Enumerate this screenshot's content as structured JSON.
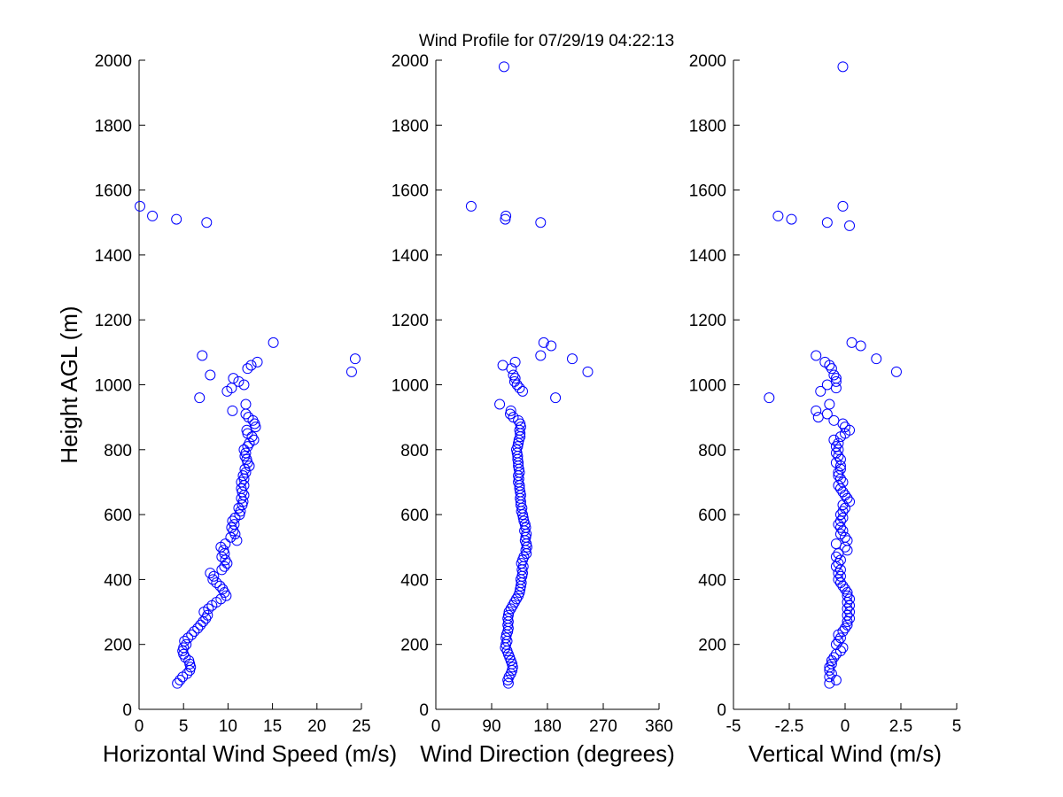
{
  "title": "Wind Profile for  07/29/19 04:22:13",
  "ylabel": "Height AGL (m)",
  "colors": {
    "marker": "#0000ff",
    "axis": "#000000",
    "background": "#ffffff"
  },
  "chart_data": [
    {
      "type": "scatter",
      "xlabel": "Horizontal Wind Speed (m/s)",
      "ylabel": "Height AGL (m)",
      "xlim": [
        0,
        25
      ],
      "ylim": [
        0,
        2000
      ],
      "xticks": [
        "0",
        "5",
        "10",
        "15",
        "20",
        "25"
      ],
      "yticks": [
        "0",
        "200",
        "400",
        "600",
        "800",
        "1000",
        "1200",
        "1400",
        "1600",
        "1800",
        "2000"
      ],
      "grid": false,
      "marker": "circle",
      "y": [
        80,
        90,
        100,
        110,
        120,
        130,
        140,
        150,
        160,
        170,
        180,
        190,
        200,
        210,
        220,
        230,
        240,
        250,
        260,
        270,
        280,
        290,
        300,
        310,
        320,
        330,
        340,
        350,
        360,
        370,
        380,
        390,
        400,
        410,
        420,
        430,
        440,
        450,
        460,
        470,
        480,
        490,
        500,
        510,
        520,
        530,
        540,
        550,
        560,
        570,
        580,
        590,
        600,
        610,
        620,
        630,
        640,
        650,
        660,
        670,
        680,
        690,
        700,
        710,
        720,
        730,
        740,
        750,
        760,
        770,
        780,
        790,
        800,
        810,
        820,
        830,
        840,
        850,
        860,
        870,
        880,
        890,
        900,
        910,
        920,
        940,
        960,
        980,
        990,
        1000,
        1010,
        1020,
        1030,
        1040,
        1050,
        1060,
        1070,
        1080,
        1090,
        1130,
        1500,
        1510,
        1520,
        1550
      ],
      "x": [
        4.3,
        4.6,
        4.9,
        5.4,
        5.7,
        5.8,
        5.7,
        5.6,
        5.2,
        5.0,
        4.9,
        5.0,
        5.3,
        5.1,
        5.5,
        5.9,
        6.2,
        6.6,
        6.9,
        7.2,
        7.5,
        7.7,
        7.3,
        7.8,
        8.2,
        8.7,
        9.2,
        9.8,
        9.6,
        9.4,
        9.1,
        8.7,
        8.3,
        8.4,
        8.0,
        9.3,
        9.6,
        9.9,
        9.7,
        9.3,
        9.6,
        9.5,
        9.2,
        9.7,
        11.0,
        10.3,
        10.8,
        10.6,
        10.4,
        10.7,
        10.5,
        10.8,
        11.3,
        11.4,
        11.2,
        11.6,
        11.7,
        11.5,
        11.8,
        11.6,
        11.5,
        11.8,
        11.5,
        11.8,
        11.7,
        12.0,
        11.9,
        12.4,
        12.2,
        12.1,
        11.9,
        12.0,
        11.8,
        12.2,
        12.4,
        12.9,
        12.7,
        12.2,
        12.1,
        13.1,
        13.0,
        12.8,
        12.3,
        12.0,
        10.5,
        12.0,
        6.8,
        9.9,
        10.4,
        11.8,
        11.2,
        10.6,
        8.0,
        23.9,
        12.2,
        12.6,
        13.3,
        24.3,
        7.1,
        15.1,
        7.6,
        4.2,
        1.5,
        0.1
      ]
    },
    {
      "type": "scatter",
      "xlabel": "Wind Direction (degrees)",
      "ylabel": "",
      "xlim": [
        0,
        360
      ],
      "ylim": [
        0,
        2000
      ],
      "xticks": [
        "0",
        "90",
        "180",
        "270",
        "360"
      ],
      "yticks": [
        "0",
        "200",
        "400",
        "600",
        "800",
        "1000",
        "1200",
        "1400",
        "1600",
        "1800",
        "2000"
      ],
      "grid": false,
      "marker": "circle",
      "y": [
        80,
        90,
        100,
        110,
        120,
        130,
        140,
        150,
        160,
        170,
        180,
        190,
        200,
        210,
        220,
        230,
        240,
        250,
        260,
        270,
        280,
        290,
        300,
        310,
        320,
        330,
        340,
        350,
        360,
        370,
        380,
        390,
        400,
        410,
        420,
        430,
        440,
        450,
        460,
        470,
        480,
        490,
        500,
        510,
        520,
        530,
        540,
        550,
        560,
        570,
        580,
        590,
        600,
        610,
        620,
        630,
        640,
        650,
        660,
        670,
        680,
        690,
        700,
        710,
        720,
        730,
        740,
        750,
        760,
        770,
        780,
        790,
        800,
        810,
        820,
        830,
        840,
        850,
        860,
        870,
        880,
        890,
        900,
        910,
        920,
        940,
        960,
        980,
        990,
        1000,
        1010,
        1020,
        1030,
        1040,
        1050,
        1060,
        1070,
        1080,
        1090,
        1120,
        1130,
        1500,
        1510,
        1520,
        1550,
        1980
      ],
      "x": [
        117,
        116,
        118,
        121,
        123,
        124,
        123,
        121,
        119,
        117,
        115,
        112,
        113,
        115,
        113,
        114,
        116,
        117,
        116,
        117,
        116,
        117,
        118,
        121,
        124,
        127,
        130,
        133,
        135,
        136,
        137,
        138,
        137,
        139,
        140,
        139,
        141,
        138,
        140,
        142,
        146,
        145,
        147,
        146,
        144,
        145,
        146,
        143,
        145,
        144,
        142,
        141,
        140,
        138,
        139,
        137,
        137,
        136,
        137,
        136,
        135,
        135,
        133,
        134,
        133,
        135,
        134,
        133,
        133,
        132,
        132,
        131,
        130,
        132,
        133,
        134,
        136,
        136,
        135,
        137,
        136,
        133,
        125,
        120,
        121,
        103,
        193,
        140,
        135,
        131,
        127,
        128,
        125,
        245,
        122,
        108,
        128,
        220,
        169,
        186,
        174,
        169,
        112,
        113,
        57,
        110
      ]
    },
    {
      "type": "scatter",
      "xlabel": "Vertical Wind (m/s)",
      "ylabel": "",
      "xlim": [
        -5,
        5
      ],
      "ylim": [
        0,
        2000
      ],
      "xticks": [
        "-5",
        "-2.5",
        "0",
        "2.5",
        "5"
      ],
      "yticks": [
        "0",
        "200",
        "400",
        "600",
        "800",
        "1000",
        "1200",
        "1400",
        "1600",
        "1800",
        "2000"
      ],
      "grid": false,
      "marker": "circle",
      "y": [
        80,
        90,
        100,
        110,
        120,
        130,
        140,
        150,
        160,
        170,
        180,
        190,
        200,
        210,
        220,
        230,
        240,
        250,
        260,
        270,
        280,
        290,
        300,
        310,
        320,
        330,
        340,
        350,
        360,
        370,
        380,
        390,
        400,
        410,
        420,
        430,
        440,
        450,
        460,
        470,
        480,
        490,
        500,
        510,
        520,
        530,
        540,
        550,
        560,
        570,
        580,
        590,
        600,
        610,
        620,
        630,
        640,
        650,
        660,
        670,
        680,
        690,
        700,
        710,
        720,
        730,
        740,
        750,
        760,
        770,
        780,
        790,
        800,
        810,
        820,
        830,
        840,
        850,
        860,
        870,
        880,
        890,
        900,
        910,
        920,
        940,
        960,
        980,
        990,
        1000,
        1010,
        1020,
        1030,
        1040,
        1050,
        1060,
        1070,
        1080,
        1090,
        1120,
        1130,
        1490,
        1500,
        1510,
        1520,
        1550,
        1980
      ],
      "x": [
        -0.7,
        -0.4,
        -0.7,
        -0.6,
        -0.7,
        -0.7,
        -0.6,
        -0.6,
        -0.5,
        -0.4,
        -0.2,
        -0.1,
        -0.4,
        -0.3,
        -0.2,
        -0.3,
        -0.1,
        0.0,
        0.1,
        0.1,
        0.2,
        0.1,
        0.2,
        0.1,
        0.2,
        0.1,
        0.2,
        0.1,
        0.1,
        0.0,
        -0.1,
        -0.2,
        -0.3,
        -0.2,
        -0.3,
        -0.2,
        -0.4,
        -0.3,
        -0.2,
        -0.4,
        -0.3,
        0.1,
        0.0,
        -0.4,
        0.1,
        0.0,
        -0.2,
        -0.1,
        -0.2,
        -0.3,
        -0.2,
        -0.1,
        -0.2,
        -0.1,
        0.0,
        -0.1,
        0.2,
        0.1,
        0.0,
        -0.1,
        -0.2,
        -0.3,
        -0.1,
        -0.2,
        -0.3,
        -0.3,
        -0.2,
        -0.2,
        -0.4,
        -0.2,
        -0.3,
        -0.4,
        -0.3,
        -0.4,
        -0.3,
        -0.5,
        -0.2,
        0.0,
        0.2,
        0.0,
        -0.1,
        -0.5,
        -1.2,
        -0.8,
        -1.3,
        -0.7,
        -3.4,
        -1.1,
        -0.4,
        -0.8,
        -0.4,
        -0.4,
        -0.5,
        2.3,
        -0.6,
        -0.7,
        -0.9,
        1.4,
        -1.3,
        0.7,
        0.3,
        0.2,
        -0.8,
        -2.4,
        -3.0,
        -0.1,
        -0.1
      ]
    }
  ]
}
